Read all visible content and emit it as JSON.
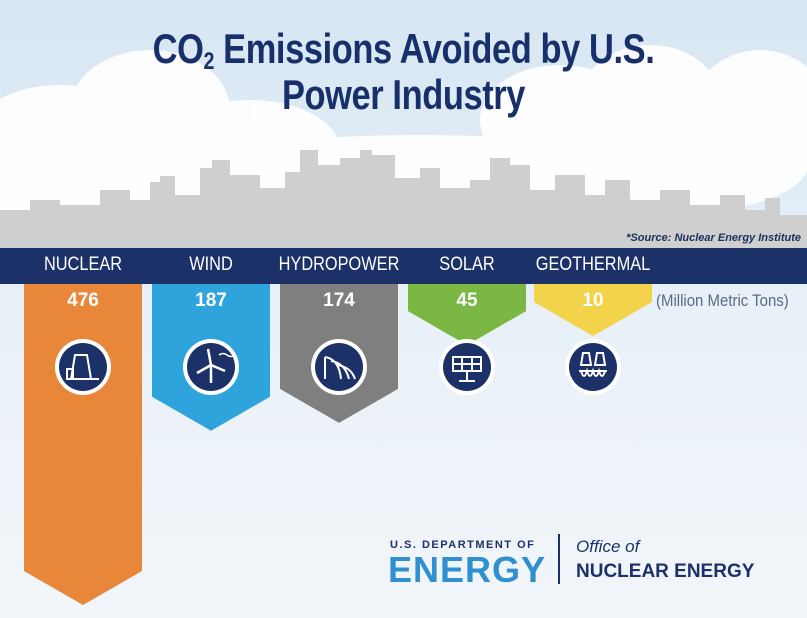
{
  "title": {
    "prefix": "CO",
    "subscript": "2",
    "line1_rest": " Emissions Avoided by U.S.",
    "line2": "Power Industry"
  },
  "source": "*Source: Nuclear Energy Institute",
  "unit_label": "(Million Metric Tons)",
  "chart_data": {
    "type": "bar",
    "title": "CO2 Emissions Avoided by U.S. Power Industry",
    "categories": [
      "NUCLEAR",
      "WIND",
      "HYDROPOWER",
      "SOLAR",
      "GEOTHERMAL"
    ],
    "values": [
      476,
      187,
      174,
      45,
      10
    ],
    "unit": "(Million Metric Tons)",
    "colors": [
      "#e8873a",
      "#2fa3dc",
      "#7f7f7f",
      "#7ab843",
      "#f3d34a"
    ],
    "icons": [
      "nuclear-plant-icon",
      "wind-turbine-icon",
      "hydro-dam-icon",
      "solar-panel-icon",
      "geothermal-plant-icon"
    ]
  },
  "logo": {
    "dept_small": "U.S. DEPARTMENT OF",
    "dept_big": "ENERGY",
    "office_of": "Office of",
    "office_name": "NUCLEAR ENERGY"
  },
  "colors": {
    "navy": "#1c3168",
    "icon_circle": "#1c3168"
  }
}
